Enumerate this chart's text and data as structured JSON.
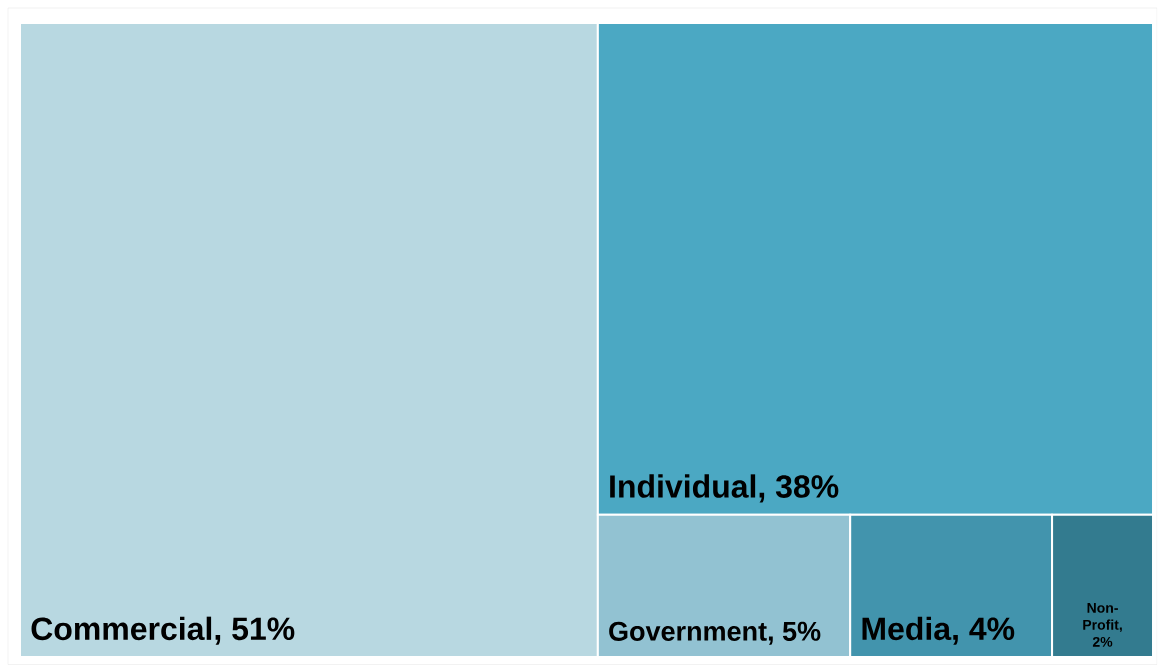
{
  "chart_data": {
    "type": "other",
    "categories": [
      "Commercial",
      "Individual",
      "Government",
      "Media",
      "Non-Profit"
    ],
    "values": [
      51,
      38,
      5,
      4,
      2
    ],
    "value_labels": [
      ", 51%",
      ", 38%",
      ", 5%",
      ", 4%",
      ", 2%"
    ],
    "colors": [
      "#b8d8e1",
      "#4ba8c3",
      "#92c2d2",
      "#4294ad",
      "#337b8f"
    ]
  }
}
